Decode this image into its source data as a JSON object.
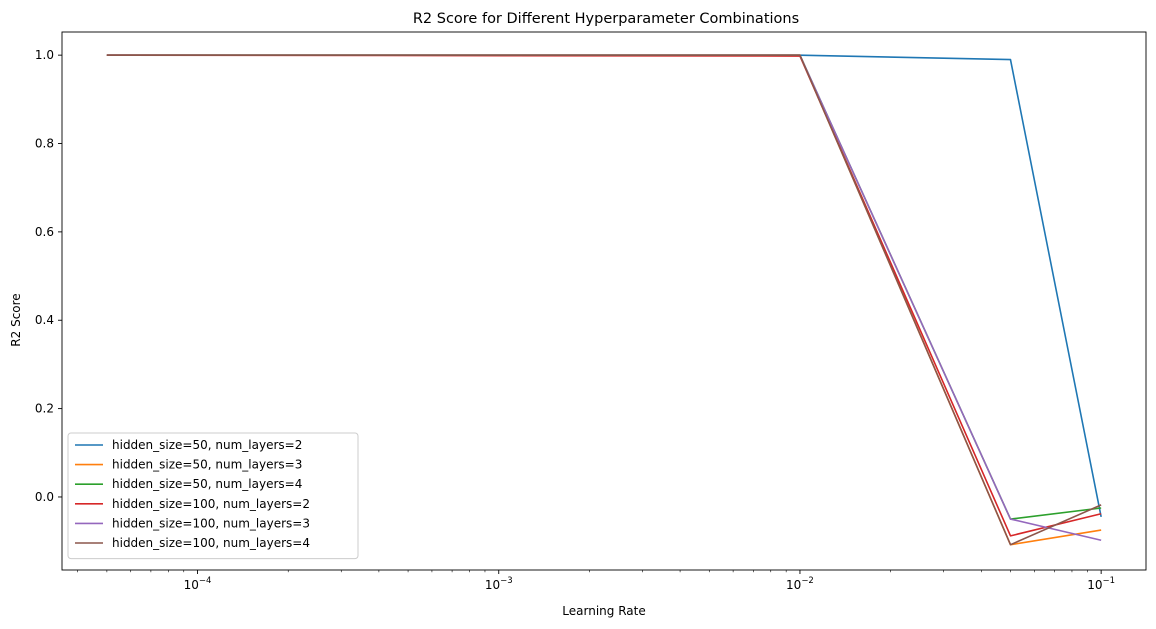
{
  "chart_data": {
    "type": "line",
    "title": "R2 Score for Different Hyperparameter Combinations",
    "xlabel": "Learning Rate",
    "ylabel": "R2 Score",
    "xscale": "log",
    "xlim": [
      3.548e-05,
      0.1409
    ],
    "ylim": [
      -0.1653,
      1.0524
    ],
    "xticks": [
      {
        "value": 0.0001,
        "base": "10",
        "exp": "−4"
      },
      {
        "value": 0.001,
        "base": "10",
        "exp": "−3"
      },
      {
        "value": 0.01,
        "base": "10",
        "exp": "−2"
      },
      {
        "value": 0.1,
        "base": "10",
        "exp": "−1"
      }
    ],
    "yticks": [
      {
        "value": 0.0,
        "label": "0.0"
      },
      {
        "value": 0.2,
        "label": "0.2"
      },
      {
        "value": 0.4,
        "label": "0.4"
      },
      {
        "value": 0.6,
        "label": "0.6"
      },
      {
        "value": 0.8,
        "label": "0.8"
      },
      {
        "value": 1.0,
        "label": "1.0"
      }
    ],
    "grid": false,
    "legend_position": "lower-left",
    "x": [
      5e-05,
      0.01,
      0.05,
      0.1
    ],
    "series": [
      {
        "name": "hidden_size=50, num_layers=2",
        "color": "#1f77b4",
        "values": [
          1.0,
          1.0,
          0.99,
          -0.045
        ]
      },
      {
        "name": "hidden_size=50, num_layers=3",
        "color": "#ff7f0e",
        "values": [
          1.0,
          1.0,
          -0.108,
          -0.075
        ]
      },
      {
        "name": "hidden_size=50, num_layers=4",
        "color": "#2ca02c",
        "values": [
          1.0,
          1.0,
          -0.05,
          -0.025
        ]
      },
      {
        "name": "hidden_size=100, num_layers=2",
        "color": "#d62728",
        "values": [
          1.0,
          0.998,
          -0.088,
          -0.038
        ]
      },
      {
        "name": "hidden_size=100, num_layers=3",
        "color": "#9467bd",
        "values": [
          1.0,
          1.0,
          -0.05,
          -0.098
        ]
      },
      {
        "name": "hidden_size=100, num_layers=4",
        "color": "#8c564b",
        "values": [
          1.0,
          1.0,
          -0.108,
          -0.018
        ]
      }
    ]
  }
}
